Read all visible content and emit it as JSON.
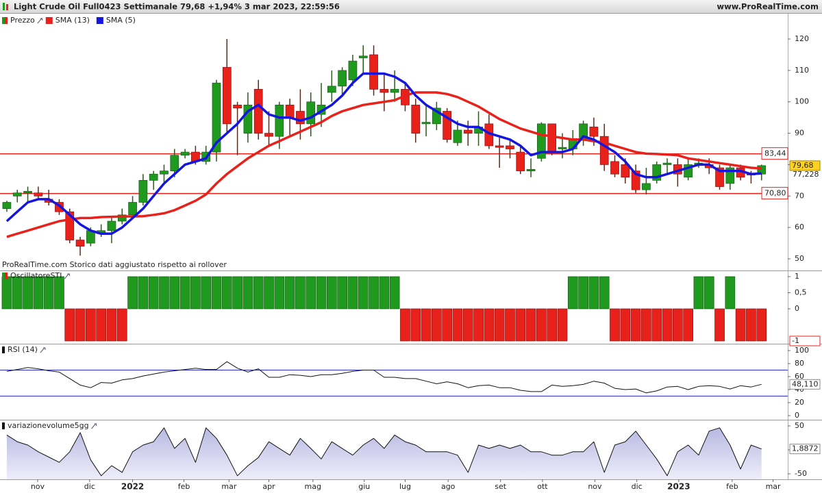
{
  "header": {
    "title": "Light Crude Oil Full0423 Settimanale 79,68 +1,94% 3 mar 2023, 22:59:56",
    "site": "www.ProRealTime.com"
  },
  "chart_data": [
    {
      "type": "candlestick",
      "name": "Prezzo",
      "up_color": "#1f9a1f",
      "down_color": "#e8211b",
      "note": "ProRealTime.com  Storico dati aggiustato rispetto ai rollover",
      "xlim": [
        -0.65,
        74.5
      ],
      "ylim": [
        46.3,
        124.58
      ],
      "yticks": [
        50,
        60,
        70,
        80,
        90,
        100,
        110,
        120
      ],
      "xticks": [
        {
          "value": 2.94,
          "label": "nov"
        },
        {
          "value": 7.9,
          "label": "dic"
        },
        {
          "value": 12.0,
          "label": "2022"
        },
        {
          "value": 16.9,
          "label": "feb"
        },
        {
          "value": 21.2,
          "label": "mar"
        },
        {
          "value": 25.0,
          "label": "apr"
        },
        {
          "value": 29.2,
          "label": "mag"
        },
        {
          "value": 34.1,
          "label": "giu"
        },
        {
          "value": 38.0,
          "label": "lug"
        },
        {
          "value": 42.1,
          "label": "ago"
        },
        {
          "value": 47.1,
          "label": "set"
        },
        {
          "value": 51.1,
          "label": "ott"
        },
        {
          "value": 56.1,
          "label": "nov"
        },
        {
          "value": 60.1,
          "label": "dic"
        },
        {
          "value": 64.1,
          "label": "2023"
        },
        {
          "value": 69.2,
          "label": "feb"
        },
        {
          "value": 73.1,
          "label": "mar"
        }
      ],
      "open": [
        66,
        70,
        71,
        71,
        69,
        68,
        65,
        56,
        55,
        58,
        59,
        62,
        64,
        68,
        75,
        77,
        78,
        83,
        84,
        81,
        84,
        111,
        99,
        90,
        104,
        90,
        89,
        99,
        97,
        93,
        96,
        103,
        105,
        107,
        114,
        115,
        104,
        103,
        104,
        99,
        93,
        93,
        97,
        87,
        91,
        90,
        93,
        86,
        86,
        84,
        78,
        82,
        93,
        85,
        85,
        88,
        92,
        89,
        81,
        80,
        78,
        72,
        75,
        80,
        80,
        76,
        80,
        80,
        79,
        74,
        79,
        77,
        77
      ],
      "high": [
        68.5,
        72,
        73,
        73,
        72,
        69,
        66,
        57,
        60,
        61,
        63,
        66,
        70,
        77,
        78,
        80,
        85,
        85,
        86,
        86,
        107,
        120,
        100,
        103,
        107,
        97,
        100,
        101,
        104,
        103,
        106,
        110,
        111,
        115,
        118,
        118,
        109,
        110,
        106,
        101,
        99,
        100,
        98,
        94,
        94,
        97,
        96,
        89,
        88,
        86,
        82,
        93.5,
        93,
        90,
        91,
        94,
        95,
        93,
        83,
        82,
        80,
        79,
        81,
        82,
        82,
        82,
        82,
        82,
        80,
        80,
        80,
        78,
        80
      ],
      "low": [
        65,
        68,
        68,
        69,
        67,
        64,
        55,
        51,
        54,
        57,
        55,
        61,
        63,
        67,
        72,
        74,
        76,
        82,
        80,
        80,
        81,
        90,
        83,
        87,
        88,
        86,
        85,
        89,
        88,
        89,
        92,
        100,
        102,
        105,
        109,
        102,
        97,
        100,
        97,
        87,
        89,
        91,
        87,
        86,
        86,
        86,
        85,
        79,
        82,
        77,
        76,
        81,
        83,
        82,
        83,
        86,
        86,
        78,
        76,
        74,
        71,
        70.5,
        74,
        77,
        73,
        75,
        79,
        77,
        72,
        72,
        75,
        74,
        75
      ],
      "close": [
        68,
        71,
        71.5,
        70,
        68,
        65,
        56,
        54,
        59,
        59,
        62,
        64,
        68,
        75,
        77,
        78,
        83,
        84,
        81,
        84,
        106,
        93,
        98,
        99,
        90,
        89,
        99,
        95,
        93,
        100,
        99,
        105,
        110,
        113,
        114.6,
        104,
        103,
        104,
        99,
        90,
        93.5,
        98,
        88,
        91,
        90,
        92,
        86,
        85.5,
        85,
        78,
        78.5,
        93,
        84,
        85.5,
        88,
        93,
        89,
        80,
        77,
        76,
        72,
        74,
        80,
        80.5,
        77,
        80,
        80.5,
        79,
        73,
        79,
        76,
        76.8,
        79.68
      ],
      "last_label": "79,68",
      "hlines": [
        {
          "value": 83.44,
          "label": "83,44"
        },
        {
          "value": 70.8,
          "label": "70,80"
        }
      ],
      "series": [
        {
          "name": "SMA (13)",
          "color": "#e8211b",
          "values": [
            57,
            58,
            59,
            60,
            61,
            62,
            62.5,
            63,
            63,
            63.3,
            63.4,
            63.5,
            63.5,
            63.6,
            64,
            64.5,
            65.5,
            67,
            68.5,
            70.5,
            74,
            77,
            79.5,
            82,
            84,
            86,
            87.5,
            89,
            90.5,
            92,
            93.5,
            95.5,
            97,
            98,
            99,
            99.5,
            100,
            100.5,
            102,
            103,
            103,
            103,
            102.5,
            101.5,
            100,
            98.5,
            96.5,
            94.5,
            93,
            91.5,
            90.5,
            89.5,
            89,
            88.5,
            88,
            88,
            87.5,
            87,
            86,
            85,
            84,
            83.5,
            83.4,
            83.2,
            83,
            82,
            81.5,
            81,
            80.5,
            80,
            79.5,
            79,
            78.8
          ]
        },
        {
          "name": "SMA (5)",
          "color": "#1515e0",
          "last_label": "77,228",
          "values": [
            62,
            65,
            68,
            69,
            69,
            67,
            64,
            61,
            59,
            58,
            58,
            60,
            63,
            66,
            70,
            74,
            77,
            80,
            81,
            82,
            87,
            90,
            93,
            97,
            99,
            96,
            95,
            95,
            94,
            95,
            97,
            99,
            102,
            106,
            109,
            109,
            109,
            108,
            106,
            102,
            99,
            97,
            95,
            93,
            92,
            92,
            90,
            89,
            88,
            86,
            83,
            84,
            84,
            84,
            85,
            89,
            88,
            86,
            84,
            81,
            77,
            76,
            76,
            77,
            78,
            79,
            80,
            80,
            78,
            78,
            78,
            77,
            77.228
          ]
        }
      ]
    },
    {
      "type": "bar",
      "name": "OscillatoreSTI",
      "xlim": [
        -0.65,
        74.5
      ],
      "ylim": [
        -1.085,
        1.17
      ],
      "yticks": [
        1,
        {
          "value": 0.5,
          "label": "0,5"
        },
        0
      ],
      "values": [
        1,
        1,
        1,
        1,
        1,
        1,
        -1,
        -1,
        -1,
        -1,
        -1,
        -1,
        1,
        1,
        1,
        1,
        1,
        1,
        1,
        1,
        1,
        1,
        1,
        1,
        1,
        1,
        1,
        1,
        1,
        1,
        1,
        1,
        1,
        1,
        1,
        1,
        1,
        1,
        -1,
        -1,
        -1,
        -1,
        -1,
        -1,
        -1,
        -1,
        -1,
        -1,
        -1,
        -1,
        -1,
        -1,
        -1,
        -1,
        1,
        1,
        1,
        1,
        -1,
        -1,
        -1,
        -1,
        -1,
        -1,
        -1,
        -1,
        1,
        1,
        -1,
        1,
        -1,
        -1,
        -1
      ]
    },
    {
      "type": "line",
      "name": "RSI (14)",
      "color": "#111111",
      "band_color": "#2a2ab8",
      "bands": [
        70,
        30
      ],
      "xlim": [
        -0.65,
        74.5
      ],
      "ylim": [
        -6.3,
        109.5
      ],
      "yticks": [
        100,
        80,
        60,
        40,
        20,
        0
      ],
      "values": [
        68,
        71,
        74,
        72,
        69,
        67,
        57,
        47,
        43,
        51,
        50,
        55,
        57,
        61,
        64,
        67,
        69,
        71,
        73,
        71,
        71,
        83,
        73,
        67,
        72,
        59,
        59,
        63,
        62,
        60,
        63,
        63,
        65,
        68,
        70,
        70,
        59,
        59,
        57,
        57,
        53,
        49,
        52,
        49,
        43,
        46,
        47,
        43,
        43,
        39,
        37,
        37,
        47,
        45,
        46,
        48,
        53,
        50,
        42,
        40,
        41,
        35,
        38,
        44,
        45,
        40,
        45,
        46,
        45,
        41,
        46,
        44,
        48.11
      ],
      "last_label": "48,110"
    },
    {
      "type": "area",
      "name": "variazionevolume5gg",
      "color": "#111111",
      "fill": "#c3c3e6",
      "xlim": [
        -0.65,
        74.5
      ],
      "ylim": [
        -61.4,
        61.4
      ],
      "yticks": [
        50,
        0,
        -50
      ],
      "values": [
        31,
        17,
        10,
        -4,
        -15,
        -26,
        -4,
        36,
        -21,
        -54,
        -33,
        -47,
        -4,
        10,
        17,
        46,
        3,
        24,
        -26,
        46,
        24,
        -11,
        -54,
        -33,
        -16,
        17,
        3,
        -11,
        24,
        3,
        -19,
        17,
        3,
        -11,
        10,
        24,
        3,
        31,
        17,
        10,
        -4,
        -4,
        -4,
        -11,
        -47,
        10,
        3,
        10,
        3,
        10,
        -4,
        -4,
        -11,
        -11,
        -4,
        -4,
        17,
        -47,
        10,
        17,
        39,
        10,
        -19,
        -54,
        -4,
        10,
        -11,
        39,
        46,
        10,
        -40,
        10,
        1.8872
      ],
      "last_label": "1,8872"
    }
  ]
}
